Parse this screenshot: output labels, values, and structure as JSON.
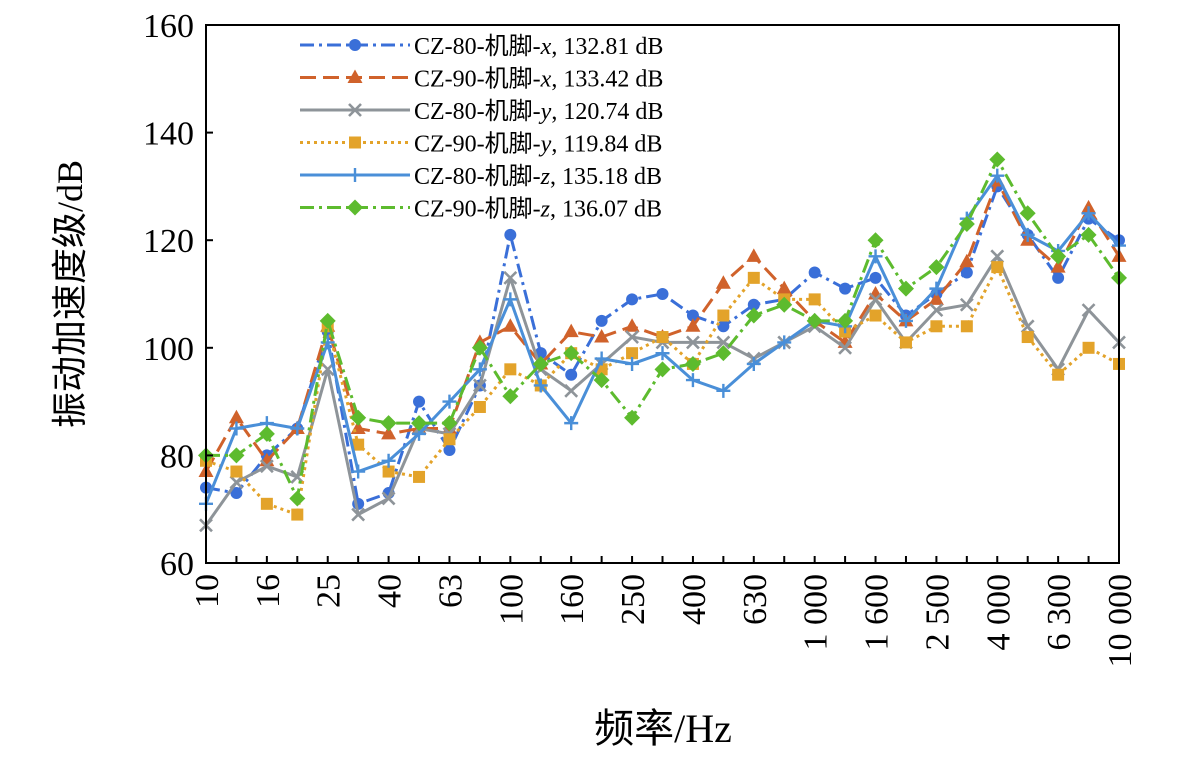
{
  "chart_data": {
    "type": "line",
    "title": "",
    "xlabel": "频率/Hz",
    "ylabel": "振动加速度级/dB",
    "ylim": [
      60,
      160
    ],
    "yticks": [
      60,
      80,
      100,
      120,
      140,
      160
    ],
    "grid": false,
    "legend_position": "top-left",
    "categories": [
      "10",
      "12.5",
      "16",
      "20",
      "25",
      "31.5",
      "40",
      "50",
      "63",
      "80",
      "100",
      "125",
      "160",
      "200",
      "250",
      "315",
      "400",
      "500",
      "630",
      "800",
      "1000",
      "1250",
      "1600",
      "2000",
      "2500",
      "3150",
      "4000",
      "5000",
      "6300",
      "8000",
      "10000"
    ],
    "tick_labels": [
      "10",
      "16",
      "25",
      "40",
      "63",
      "100",
      "160",
      "250",
      "400",
      "630",
      "1 000",
      "1 600",
      "2 500",
      "4 000",
      "6 300",
      "10 000"
    ],
    "series": [
      {
        "name": "CZ-80-机脚-x, 132.81 dB",
        "prefix": "CZ-80-机脚-",
        "axis": "x",
        "suffix": ", 132.81 dB",
        "color": "#3A6FD8",
        "marker": "circle",
        "dash": "14,5,3,5",
        "values": [
          74,
          73,
          80,
          85,
          103,
          71,
          73,
          90,
          81,
          93,
          121,
          99,
          95,
          105,
          109,
          110,
          106,
          104,
          108,
          109,
          114,
          111,
          113,
          106,
          110,
          114,
          130,
          121,
          113,
          124,
          120
        ]
      },
      {
        "name": "CZ-90-机脚-x, 133.42 dB",
        "prefix": "CZ-90-机脚-",
        "axis": "x",
        "suffix": ", 133.42 dB",
        "color": "#D0622B",
        "marker": "triangle",
        "dash": "16,7",
        "values": [
          77,
          87,
          79,
          85,
          104,
          85,
          84,
          85,
          85,
          101,
          104,
          97,
          103,
          102,
          104,
          102,
          104,
          112,
          117,
          111,
          105,
          101,
          110,
          105,
          109,
          116,
          131,
          120,
          115,
          126,
          117
        ]
      },
      {
        "name": "CZ-80-机脚-y, 120.74 dB",
        "prefix": "CZ-80-机脚-",
        "axis": "y",
        "suffix": ", 120.74 dB",
        "color": "#8E9499",
        "marker": "x",
        "dash": "",
        "values": [
          67,
          75,
          78,
          76,
          96,
          69,
          72,
          85,
          84,
          93,
          113,
          96,
          92,
          97,
          102,
          101,
          101,
          101,
          98,
          101,
          104,
          100,
          109,
          101,
          107,
          108,
          117,
          104,
          96,
          107,
          101
        ]
      },
      {
        "name": "CZ-90-机脚-y, 119.84 dB",
        "prefix": "CZ-90-机脚-",
        "axis": "y",
        "suffix": ", 119.84 dB",
        "color": "#E3A32A",
        "marker": "square",
        "dash": "3,4",
        "values": [
          79,
          77,
          71,
          69,
          104,
          82,
          77,
          76,
          83,
          89,
          96,
          93,
          99,
          96,
          99,
          102,
          97,
          106,
          113,
          109,
          109,
          103,
          106,
          101,
          104,
          104,
          115,
          102,
          95,
          100,
          97
        ]
      },
      {
        "name": "CZ-80-机脚-z, 135.18 dB",
        "prefix": "CZ-80-机脚-",
        "axis": "z",
        "suffix": ", 135.18 dB",
        "color": "#4A8FD8",
        "marker": "plus",
        "dash": "",
        "values": [
          71,
          85,
          86,
          85,
          101,
          77,
          79,
          84,
          90,
          96,
          109,
          93,
          86,
          98,
          97,
          99,
          94,
          92,
          97,
          101,
          105,
          104,
          117,
          105,
          111,
          124,
          132,
          121,
          118,
          125,
          119
        ]
      },
      {
        "name": "CZ-90-机脚-z, 136.07 dB",
        "prefix": "CZ-90-机脚-",
        "axis": "z",
        "suffix": ", 136.07 dB",
        "color": "#5DBB2E",
        "marker": "diamond",
        "dash": "14,5,3,5",
        "values": [
          80,
          80,
          84,
          72,
          105,
          87,
          86,
          86,
          86,
          100,
          91,
          97,
          99,
          94,
          87,
          96,
          97,
          99,
          106,
          108,
          105,
          105,
          120,
          111,
          115,
          123,
          135,
          125,
          117,
          121,
          113
        ]
      }
    ]
  }
}
